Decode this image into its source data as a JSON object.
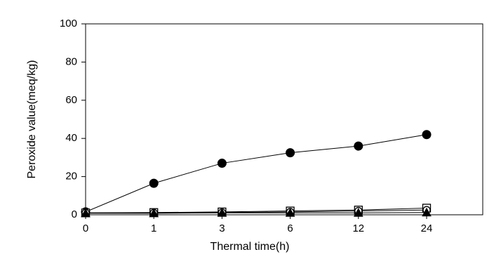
{
  "chart_data": {
    "type": "line",
    "x_label": "Thermal time(h)",
    "y_label": "Peroxide value(meq/kg)",
    "categories": [
      "0",
      "1",
      "3",
      "6",
      "12",
      "24"
    ],
    "ylim": [
      0,
      100
    ],
    "yticks": [
      0,
      20,
      40,
      60,
      80,
      100
    ],
    "series": [
      {
        "marker": "filled-circle",
        "color": "#000000",
        "values": [
          1.5,
          16.5,
          27,
          32.5,
          36,
          42
        ]
      },
      {
        "marker": "open-square",
        "color": "#000000",
        "values": [
          1,
          1.2,
          1.5,
          2,
          2.5,
          3.5
        ]
      },
      {
        "marker": "open-circle",
        "color": "#000000",
        "values": [
          1,
          1,
          1.2,
          1.5,
          2,
          2.5
        ]
      },
      {
        "marker": "filled-triangle",
        "color": "#000000",
        "values": [
          0.8,
          0.8,
          1,
          1,
          1,
          1.2
        ]
      }
    ]
  }
}
